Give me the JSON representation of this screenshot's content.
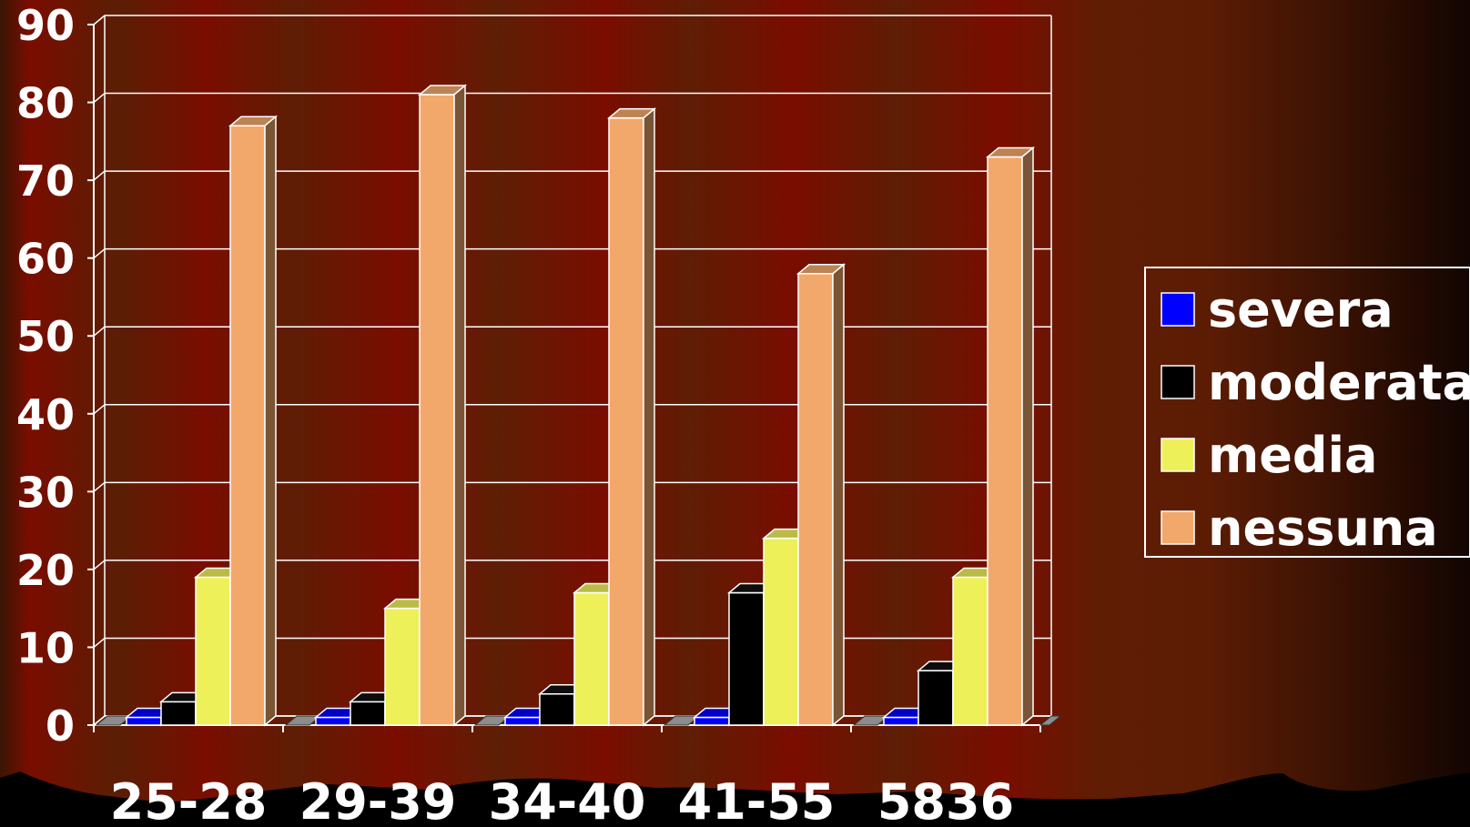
{
  "chart_data": {
    "type": "bar",
    "title": "",
    "xlabel": "",
    "ylabel": "",
    "ylim": [
      0,
      90
    ],
    "y_ticks": [
      "0",
      "10",
      "20",
      "30",
      "40",
      "50",
      "60",
      "70",
      "80",
      "90"
    ],
    "categories": [
      "25-28",
      "29-39",
      "34-40",
      "41-55",
      "5836"
    ],
    "series": [
      {
        "name": "severa",
        "color": "#0000ff",
        "values": [
          1,
          1,
          1,
          1,
          1
        ]
      },
      {
        "name": "moderata",
        "color": "#000000",
        "values": [
          3,
          3,
          4,
          17,
          7
        ]
      },
      {
        "name": "media",
        "color": "#eef05a",
        "values": [
          19,
          15,
          17,
          24,
          19
        ]
      },
      {
        "name": "nessuna",
        "color": "#f2a86a",
        "values": [
          77,
          81,
          78,
          58,
          73
        ]
      }
    ],
    "grid": true,
    "legend_position": "right",
    "style": "3d-clustered-columns"
  }
}
